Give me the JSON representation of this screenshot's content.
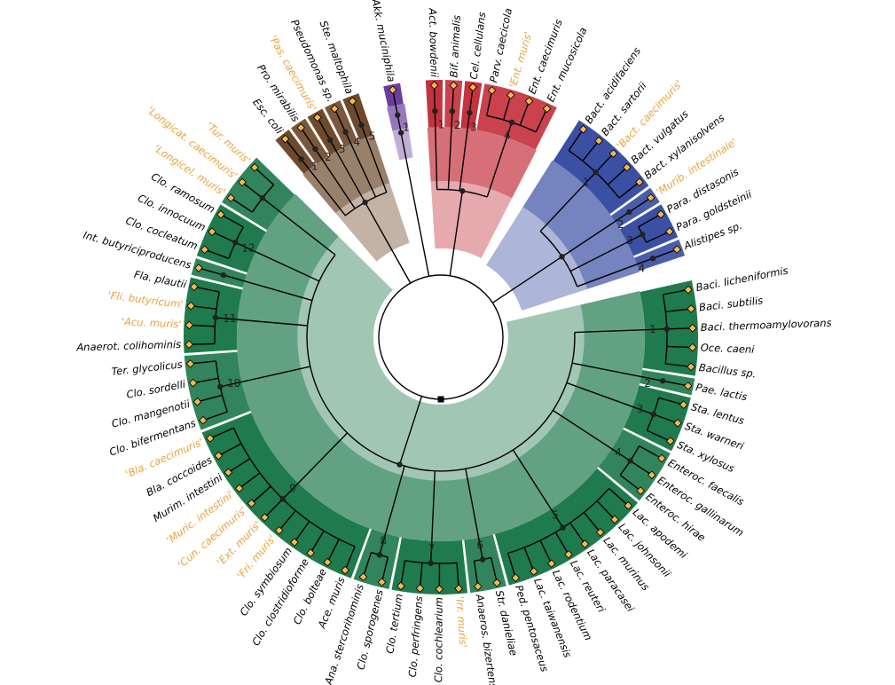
{
  "groups": [
    {
      "color": "#c4323f",
      "clades": [
        {
          "label": "1",
          "leaves": [
            {
              "name": "Act. bowdenii",
              "color": "#000000"
            }
          ]
        },
        {
          "label": "2",
          "leaves": [
            {
              "name": "Bif. animalis",
              "color": "#000000"
            }
          ]
        },
        {
          "label": "3",
          "leaves": [
            {
              "name": "Cel. cellulans",
              "color": "#000000"
            }
          ]
        },
        {
          "label": "4",
          "leaves": [
            {
              "name": "Parv. caecicola",
              "color": "#000000"
            },
            {
              "name": "'Ent. muris'",
              "color": "#e9a23b"
            },
            {
              "name": "Ent. caecimuris",
              "color": "#000000"
            },
            {
              "name": "Ent. mucosicola",
              "color": "#000000"
            }
          ]
        }
      ]
    },
    {
      "color": "#3b4fa3",
      "clades": [
        {
          "label": "1",
          "leaves": [
            {
              "name": "Bact. acidifaciens",
              "color": "#000000"
            },
            {
              "name": "Bact. sartorii",
              "color": "#000000"
            },
            {
              "name": "'Bact. caecimuris'",
              "color": "#e9a23b"
            },
            {
              "name": "Bact. vulgatus",
              "color": "#000000"
            },
            {
              "name": "Bact. xylanisolvens",
              "color": "#000000"
            }
          ]
        },
        {
          "label": "2",
          "leaves": [
            {
              "name": "'Murib. intestinale'",
              "color": "#e9a23b"
            }
          ]
        },
        {
          "label": "3",
          "leaves": [
            {
              "name": "Para. distasonis",
              "color": "#000000"
            },
            {
              "name": "Para. goldsteinii",
              "color": "#000000"
            }
          ]
        },
        {
          "label": "4",
          "leaves": [
            {
              "name": "Alistipes sp.",
              "color": "#000000"
            }
          ]
        }
      ]
    },
    {
      "color": "#1f7a4d",
      "clades": [
        {
          "label": "1",
          "leaves": [
            {
              "name": "Baci. licheniformis",
              "color": "#000000"
            },
            {
              "name": "Baci. subtilis",
              "color": "#000000"
            },
            {
              "name": "Baci. thermoamylovorans",
              "color": "#000000"
            },
            {
              "name": "Oce. caeni",
              "color": "#000000"
            },
            {
              "name": "Bacillus sp.",
              "color": "#000000"
            }
          ]
        },
        {
          "label": "2",
          "leaves": [
            {
              "name": "Pae. lactis",
              "color": "#000000"
            }
          ]
        },
        {
          "label": "3",
          "leaves": [
            {
              "name": "Sta. lentus",
              "color": "#000000"
            },
            {
              "name": "Sta. warneri",
              "color": "#000000"
            },
            {
              "name": "Sta. xylosus",
              "color": "#000000"
            }
          ]
        },
        {
          "label": "4",
          "leaves": [
            {
              "name": "Enteroc. faecalis",
              "color": "#000000"
            },
            {
              "name": "Enteroc. gallinarum",
              "color": "#000000"
            },
            {
              "name": "Enteroc. hirae",
              "color": "#000000"
            }
          ]
        },
        {
          "label": "5",
          "leaves": [
            {
              "name": "Lac. apodemi",
              "color": "#000000"
            },
            {
              "name": "Lac. johnsonii",
              "color": "#000000"
            },
            {
              "name": "Lac. murinus",
              "color": "#000000"
            },
            {
              "name": "Lac. paracasei",
              "color": "#000000"
            },
            {
              "name": "Lac. reuteri",
              "color": "#000000"
            },
            {
              "name": "Lac. rodentium",
              "color": "#000000"
            },
            {
              "name": "Lac. taiwanensis",
              "color": "#000000"
            },
            {
              "name": "Ped. pentosaceus",
              "color": "#000000"
            }
          ]
        },
        {
          "label": "6",
          "leaves": [
            {
              "name": "Str. danieliae",
              "color": "#000000"
            },
            {
              "name": "Anaeros. bizertensis",
              "color": "#000000"
            }
          ]
        },
        {
          "label": "7",
          "leaves": [
            {
              "name": "'Irr. muris'",
              "color": "#e9a23b"
            },
            {
              "name": "Clo. cochlearium",
              "color": "#000000"
            },
            {
              "name": "Clo. perfringens",
              "color": "#000000"
            },
            {
              "name": "Clo. tertium",
              "color": "#000000"
            }
          ]
        },
        {
          "label": "8",
          "leaves": [
            {
              "name": "Clo. sporogenes",
              "color": "#000000"
            },
            {
              "name": "Ana. stercorihominis",
              "color": "#000000"
            }
          ]
        },
        {
          "label": "9",
          "leaves": [
            {
              "name": "Ace. muris",
              "color": "#000000"
            },
            {
              "name": "Clo. bolteae",
              "color": "#000000"
            },
            {
              "name": "Clo. clostridioforme",
              "color": "#000000"
            },
            {
              "name": "Clo. symbiosum",
              "color": "#000000"
            },
            {
              "name": "'Fri. muris'",
              "color": "#e9a23b"
            },
            {
              "name": "'Ext. muris'",
              "color": "#e9a23b"
            },
            {
              "name": "'Cun. caecimuris'",
              "color": "#e9a23b"
            },
            {
              "name": "'Muric. intestini'",
              "color": "#e9a23b"
            },
            {
              "name": "Murim. intestini",
              "color": "#000000"
            },
            {
              "name": "Bla. coccoides",
              "color": "#000000"
            },
            {
              "name": "'Bla. caecimuris'",
              "color": "#e9a23b"
            }
          ]
        },
        {
          "label": "10",
          "leaves": [
            {
              "name": "Clo. bifermentans",
              "color": "#000000"
            },
            {
              "name": "Clo. mangenotii",
              "color": "#000000"
            },
            {
              "name": "Clo. sordelli",
              "color": "#000000"
            },
            {
              "name": "Ter. glycolicus",
              "color": "#000000"
            }
          ]
        },
        {
          "label": "11",
          "leaves": [
            {
              "name": "Anaerot. colihominis",
              "color": "#000000"
            },
            {
              "name": "'Acu. muris'",
              "color": "#e9a23b"
            },
            {
              "name": "'Fli. butyricum'",
              "color": "#e9a23b"
            },
            {
              "name": "Fla. plautii",
              "color": "#000000"
            }
          ]
        },
        {
          "leaves": [
            {
              "name": "Int. butyriciproducens",
              "color": "#000000"
            }
          ]
        },
        {
          "label": "12",
          "leaves": [
            {
              "name": "Clo. cocleatum",
              "color": "#000000"
            },
            {
              "name": "Clo. innocuum",
              "color": "#000000"
            },
            {
              "name": "Clo. ramosum",
              "color": "#000000"
            }
          ]
        },
        {
          "leaves": [
            {
              "name": "'Longicel. muris'",
              "color": "#e9a23b"
            },
            {
              "name": "'Longicat. caecimuris'",
              "color": "#e9a23b"
            },
            {
              "name": "'Tur. muris'",
              "color": "#e9a23b"
            }
          ]
        }
      ]
    },
    {
      "color": "#6e4a2c",
      "clades": [
        {
          "label": "1",
          "leaves": [
            {
              "name": "Esc. coli",
              "color": "#000000"
            }
          ]
        },
        {
          "label": "2",
          "leaves": [
            {
              "name": "Pro. mirabilis",
              "color": "#000000"
            }
          ]
        },
        {
          "label": "3",
          "leaves": [
            {
              "name": "'Pas. caecimuris'",
              "color": "#e9a23b"
            }
          ]
        },
        {
          "label": "4",
          "leaves": [
            {
              "name": "Pseudomonas sp.",
              "color": "#000000"
            }
          ]
        },
        {
          "label": "5",
          "leaves": [
            {
              "name": "Ste. maltophila",
              "color": "#000000"
            }
          ]
        }
      ]
    },
    {
      "color": "#6b3d9c",
      "clades": [
        {
          "label": "1",
          "leaves": [
            {
              "name": "Akk. muciniphila",
              "color": "#000000"
            }
          ]
        }
      ]
    }
  ]
}
